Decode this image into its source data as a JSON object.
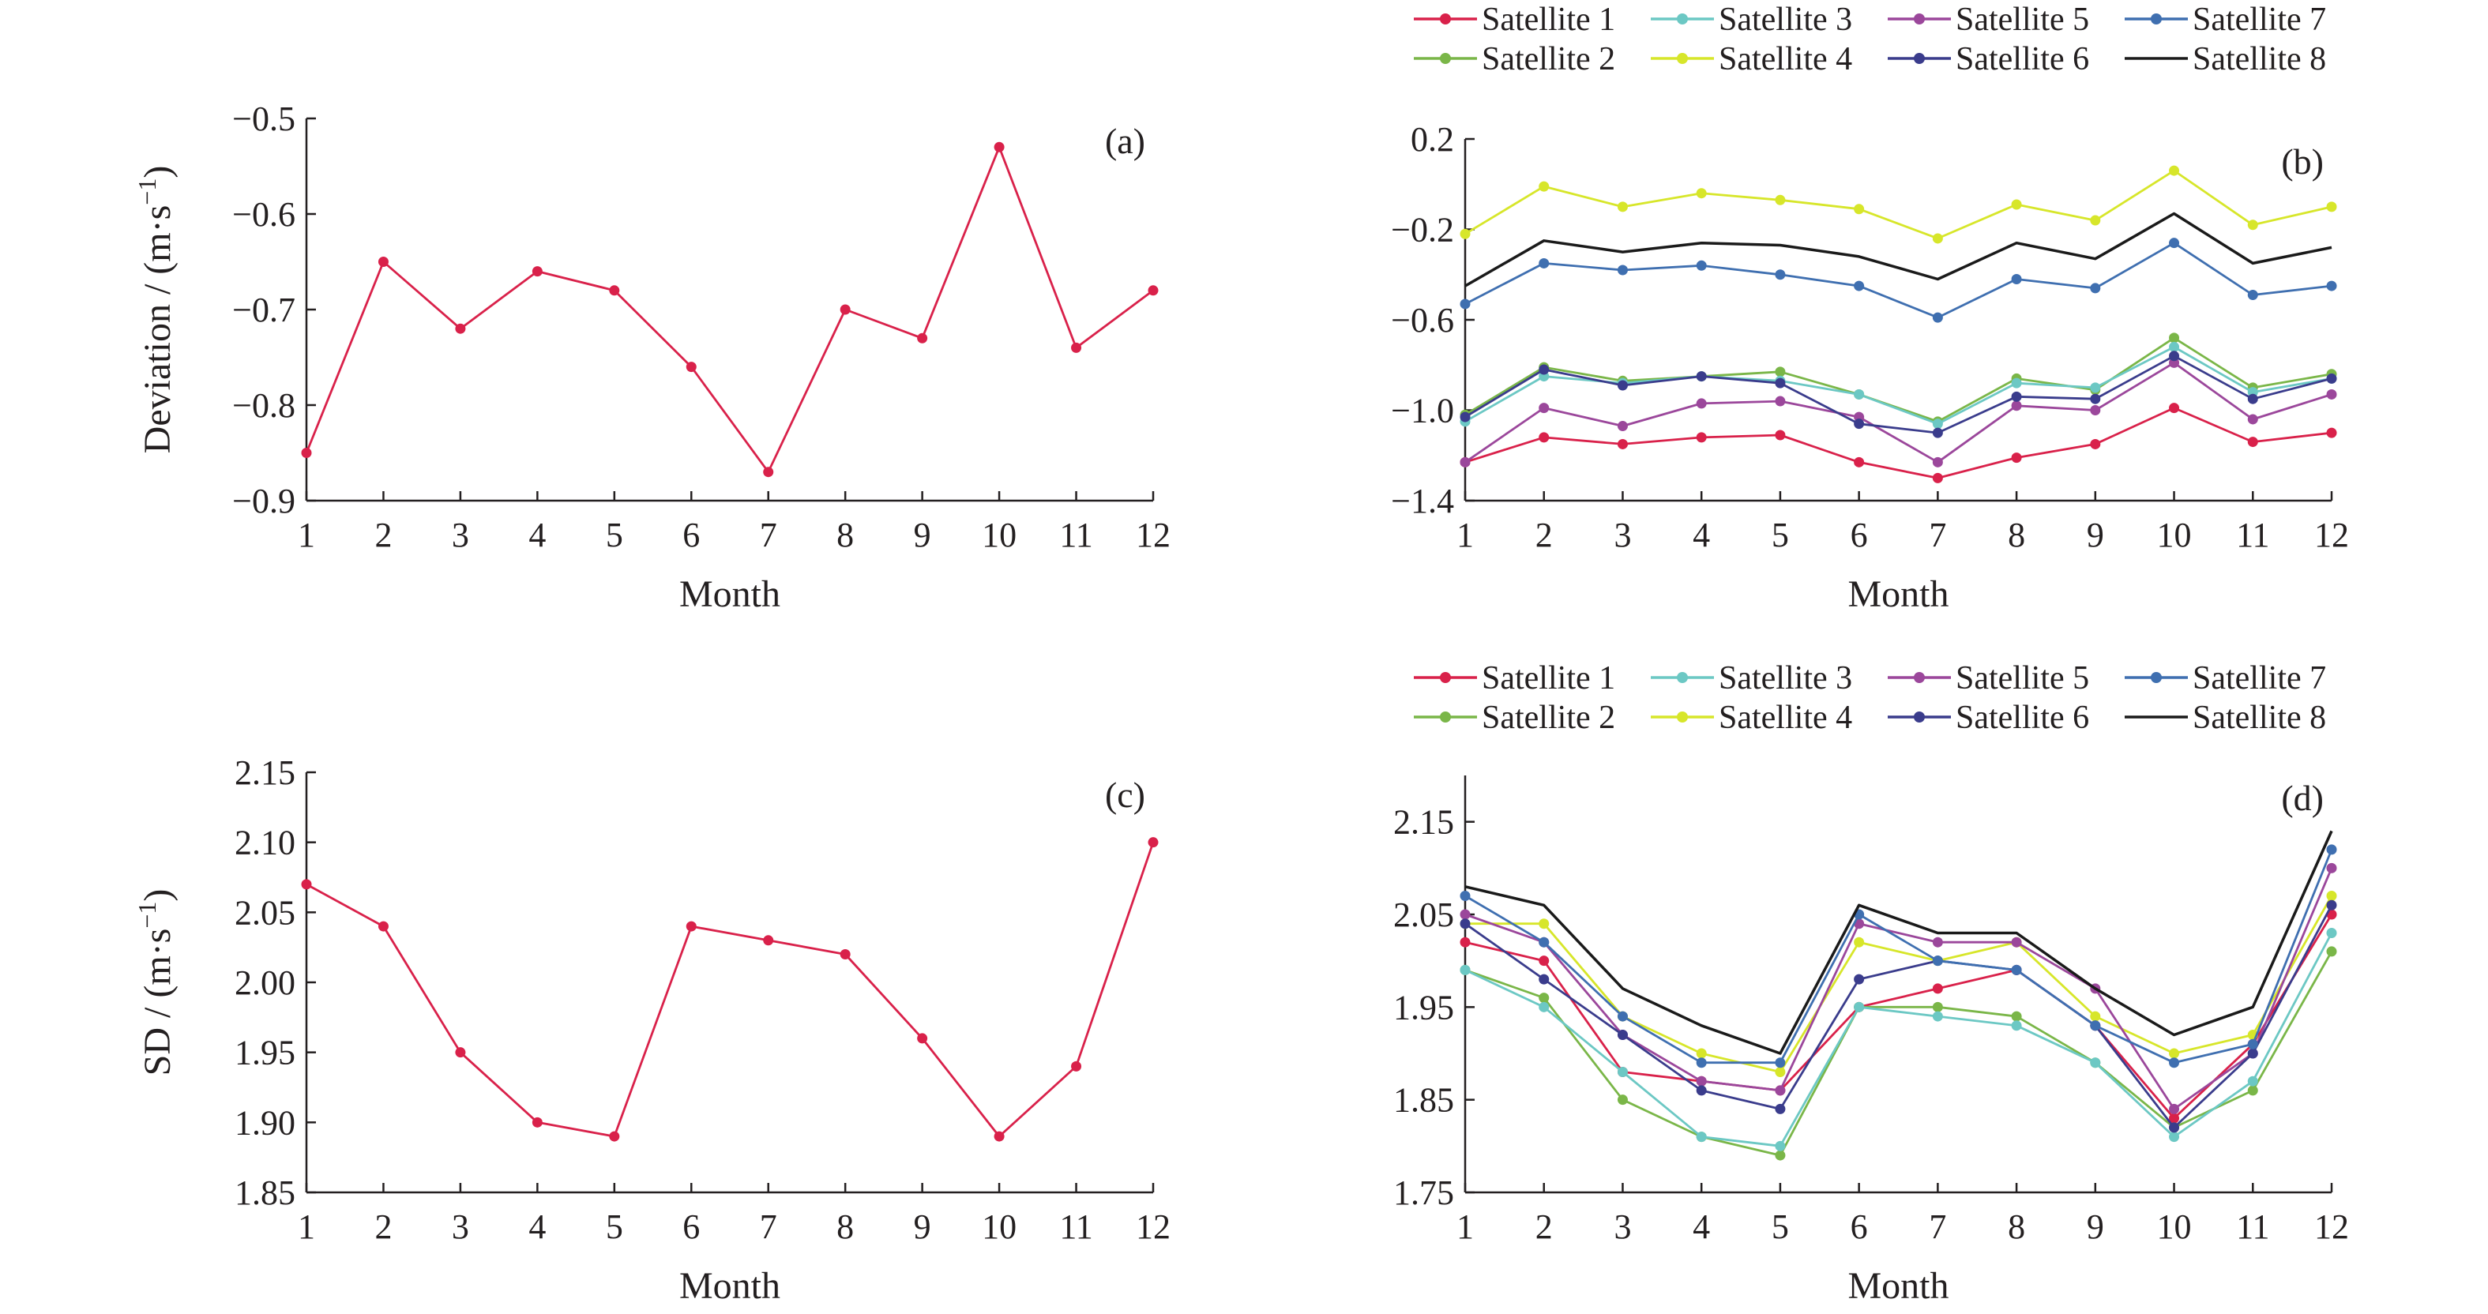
{
  "chart_data": [
    {
      "type": "line",
      "panel_label": "(a)",
      "xlabel": "Month",
      "ylabel": "Deviation / (m·s⁻¹)",
      "ylabel_base": "Deviation / (m·s",
      "ylabel_exp": "−1",
      "ylabel_close": ")",
      "categories": [
        "1",
        "2",
        "3",
        "4",
        "5",
        "6",
        "7",
        "8",
        "9",
        "10",
        "11",
        "12"
      ],
      "ylim": [
        -0.9,
        -0.5
      ],
      "yticks": [
        -0.9,
        -0.8,
        -0.7,
        -0.6,
        -0.5
      ],
      "ytick_labels": [
        "−0.9",
        "−0.8",
        "−0.7",
        "−0.6",
        "−0.5"
      ],
      "grid": false,
      "series": [
        {
          "color": "#d9214a",
          "values": [
            -0.85,
            -0.65,
            -0.72,
            -0.66,
            -0.68,
            -0.76,
            -0.87,
            -0.7,
            -0.73,
            -0.53,
            -0.74,
            -0.68
          ]
        }
      ]
    },
    {
      "type": "line",
      "panel_label": "(b)",
      "xlabel": "Month",
      "ylabel": "",
      "categories": [
        "1",
        "2",
        "3",
        "4",
        "5",
        "6",
        "7",
        "8",
        "9",
        "10",
        "11",
        "12"
      ],
      "ylim": [
        -1.4,
        0.2
      ],
      "yticks": [
        -1.4,
        -1.0,
        -0.6,
        -0.2,
        0.2
      ],
      "ytick_labels": [
        "−1.4",
        "−1.0",
        "−0.6",
        "−0.2",
        "0.2"
      ],
      "grid": false,
      "legend_position": "top",
      "series": [
        {
          "name": "Satellite 1",
          "color": "#d9214a",
          "values": [
            -1.23,
            -1.12,
            -1.15,
            -1.12,
            -1.11,
            -1.23,
            -1.3,
            -1.21,
            -1.15,
            -0.99,
            -1.14,
            -1.1
          ]
        },
        {
          "name": "Satellite 2",
          "color": "#7ab648",
          "values": [
            -1.02,
            -0.81,
            -0.87,
            -0.85,
            -0.83,
            -0.93,
            -1.05,
            -0.86,
            -0.91,
            -0.68,
            -0.9,
            -0.84
          ]
        },
        {
          "name": "Satellite 3",
          "color": "#6cc8c4",
          "values": [
            -1.05,
            -0.85,
            -0.88,
            -0.85,
            -0.87,
            -0.93,
            -1.06,
            -0.88,
            -0.9,
            -0.72,
            -0.92,
            -0.86
          ]
        },
        {
          "name": "Satellite 4",
          "color": "#d7e62a",
          "values": [
            -0.22,
            -0.01,
            -0.1,
            -0.04,
            -0.07,
            -0.11,
            -0.24,
            -0.09,
            -0.16,
            0.06,
            -0.18,
            -0.1
          ]
        },
        {
          "name": "Satellite 5",
          "color": "#9b479b",
          "values": [
            -1.23,
            -0.99,
            -1.07,
            -0.97,
            -0.96,
            -1.03,
            -1.23,
            -0.98,
            -1.0,
            -0.79,
            -1.04,
            -0.93
          ]
        },
        {
          "name": "Satellite 6",
          "color": "#3a3c8c",
          "values": [
            -1.03,
            -0.82,
            -0.89,
            -0.85,
            -0.88,
            -1.06,
            -1.1,
            -0.94,
            -0.95,
            -0.76,
            -0.95,
            -0.86
          ]
        },
        {
          "name": "Satellite 7",
          "color": "#3f6fb0",
          "values": [
            -0.53,
            -0.35,
            -0.38,
            -0.36,
            -0.4,
            -0.45,
            -0.59,
            -0.42,
            -0.46,
            -0.26,
            -0.49,
            -0.45
          ]
        },
        {
          "name": "Satellite 8",
          "color": "#1a1a1a",
          "markers": false,
          "values": [
            -0.45,
            -0.25,
            -0.3,
            -0.26,
            -0.27,
            -0.32,
            -0.42,
            -0.26,
            -0.33,
            -0.13,
            -0.35,
            -0.28
          ]
        }
      ]
    },
    {
      "type": "line",
      "panel_label": "(c)",
      "xlabel": "Month",
      "ylabel": "SD / (m·s⁻¹)",
      "ylabel_base": "SD / (m·s",
      "ylabel_exp": "−1",
      "ylabel_close": ")",
      "categories": [
        "1",
        "2",
        "3",
        "4",
        "5",
        "6",
        "7",
        "8",
        "9",
        "10",
        "11",
        "12"
      ],
      "ylim": [
        1.85,
        2.15
      ],
      "yticks": [
        1.85,
        1.9,
        1.95,
        2.0,
        2.05,
        2.1,
        2.15
      ],
      "ytick_labels": [
        "1.85",
        "1.90",
        "1.95",
        "2.00",
        "2.05",
        "2.10",
        "2.15"
      ],
      "grid": false,
      "series": [
        {
          "color": "#d9214a",
          "values": [
            2.07,
            2.04,
            1.95,
            1.9,
            1.89,
            2.04,
            2.03,
            2.02,
            1.96,
            1.89,
            1.94,
            2.1
          ]
        }
      ]
    },
    {
      "type": "line",
      "panel_label": "(d)",
      "xlabel": "Month",
      "ylabel": "",
      "categories": [
        "1",
        "2",
        "3",
        "4",
        "5",
        "6",
        "7",
        "8",
        "9",
        "10",
        "11",
        "12"
      ],
      "ylim": [
        1.75,
        2.2
      ],
      "yticks": [
        1.75,
        1.85,
        1.95,
        2.05,
        2.15
      ],
      "ytick_labels": [
        "1.75",
        "1.85",
        "1.95",
        "2.05",
        "2.15"
      ],
      "grid": false,
      "legend_position": "top",
      "series": [
        {
          "name": "Satellite 1",
          "color": "#d9214a",
          "values": [
            2.02,
            2.0,
            1.88,
            1.87,
            1.86,
            1.95,
            1.97,
            1.99,
            1.93,
            1.83,
            1.91,
            2.05
          ]
        },
        {
          "name": "Satellite 2",
          "color": "#7ab648",
          "values": [
            1.99,
            1.96,
            1.85,
            1.81,
            1.79,
            1.95,
            1.95,
            1.94,
            1.89,
            1.82,
            1.86,
            2.01
          ]
        },
        {
          "name": "Satellite 3",
          "color": "#6cc8c4",
          "values": [
            1.99,
            1.95,
            1.88,
            1.81,
            1.8,
            1.95,
            1.94,
            1.93,
            1.89,
            1.81,
            1.87,
            2.03
          ]
        },
        {
          "name": "Satellite 4",
          "color": "#d7e62a",
          "values": [
            2.04,
            2.04,
            1.94,
            1.9,
            1.88,
            2.02,
            2.0,
            2.02,
            1.94,
            1.9,
            1.92,
            2.07
          ]
        },
        {
          "name": "Satellite 5",
          "color": "#9b479b",
          "values": [
            2.05,
            2.02,
            1.92,
            1.87,
            1.86,
            2.04,
            2.02,
            2.02,
            1.97,
            1.84,
            1.9,
            2.1
          ]
        },
        {
          "name": "Satellite 6",
          "color": "#3a3c8c",
          "values": [
            2.04,
            1.98,
            1.92,
            1.86,
            1.84,
            1.98,
            2.0,
            1.99,
            1.93,
            1.82,
            1.9,
            2.06
          ]
        },
        {
          "name": "Satellite 7",
          "color": "#3f6fb0",
          "values": [
            2.07,
            2.02,
            1.94,
            1.89,
            1.89,
            2.05,
            2.0,
            1.99,
            1.93,
            1.89,
            1.91,
            2.12
          ]
        },
        {
          "name": "Satellite 8",
          "color": "#1a1a1a",
          "markers": false,
          "values": [
            2.08,
            2.06,
            1.97,
            1.93,
            1.9,
            2.06,
            2.03,
            2.03,
            1.97,
            1.92,
            1.95,
            2.14
          ]
        }
      ]
    }
  ]
}
